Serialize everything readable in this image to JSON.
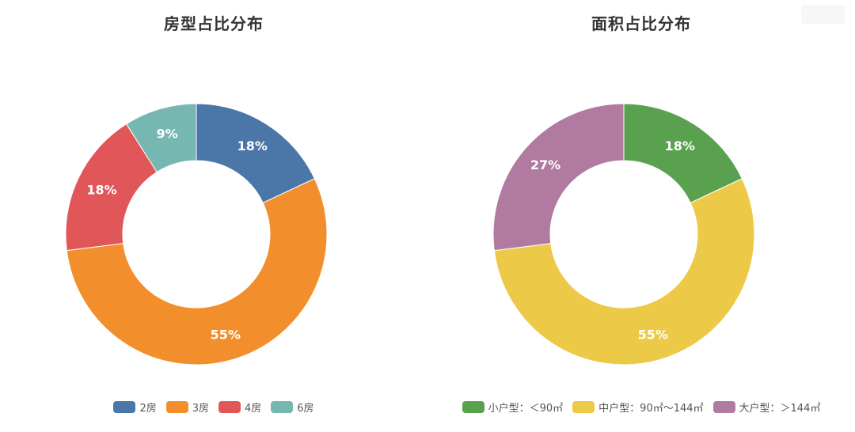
{
  "chart_data": [
    {
      "type": "pie",
      "title": "房型占比分布",
      "categories": [
        "2房",
        "3房",
        "4房",
        "6房"
      ],
      "values": [
        18,
        55,
        18,
        9
      ],
      "labels": [
        "18%",
        "55%",
        "18%",
        "9%"
      ],
      "colors": [
        "#4a76a8",
        "#f28e2b",
        "#e15759",
        "#76b7b2"
      ],
      "donut": true,
      "legend": "bottom"
    },
    {
      "type": "pie",
      "title": "面积占比分布",
      "categories": [
        "小户型：＜90㎡",
        "中户型：90㎡～144㎡",
        "大户型：＞144㎡"
      ],
      "values": [
        18,
        55,
        27
      ],
      "labels": [
        "18%",
        "55%",
        "27%"
      ],
      "colors": [
        "#59a14f",
        "#edc948",
        "#b07aa1"
      ],
      "donut": true,
      "legend": "bottom"
    }
  ]
}
